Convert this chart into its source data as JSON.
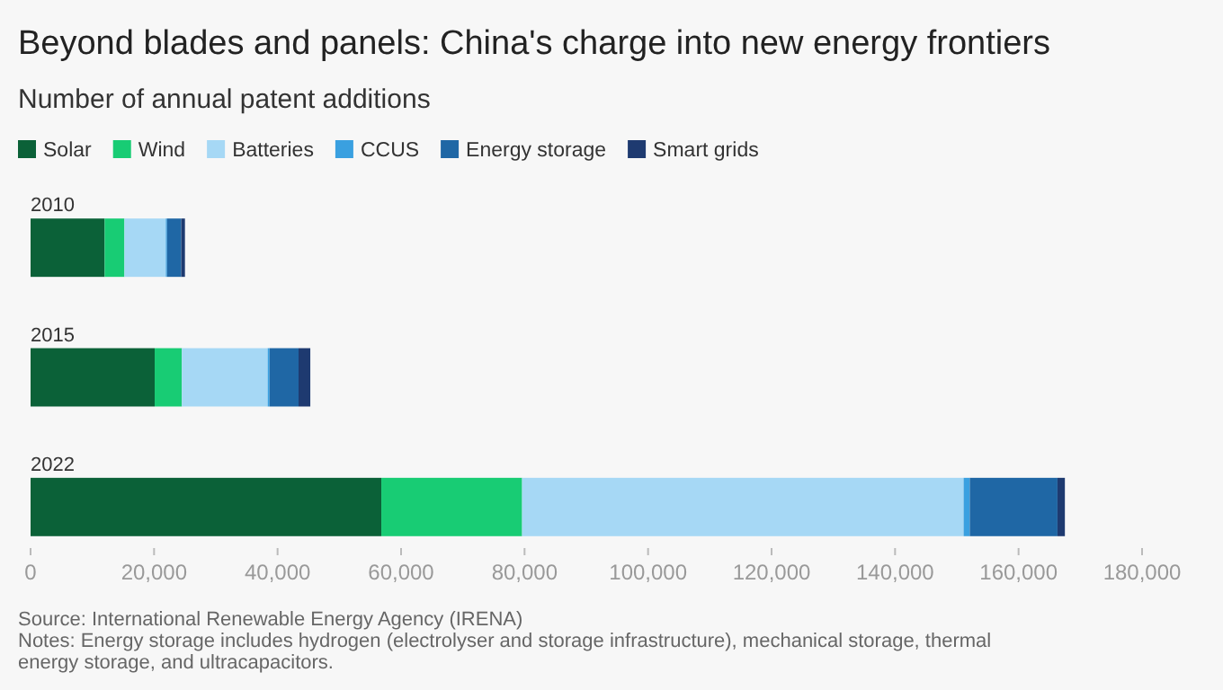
{
  "chart_data": {
    "type": "bar",
    "orientation": "horizontal",
    "stacked": true,
    "title": "Beyond blades and panels: China's charge into new energy frontiers",
    "subtitle": "Number of annual patent additions",
    "categories": [
      "2010",
      "2015",
      "2022"
    ],
    "series": [
      {
        "name": "Solar",
        "color": "#0b6138",
        "values": [
          12000,
          20100,
          56800
        ]
      },
      {
        "name": "Wind",
        "color": "#18cc74",
        "values": [
          3200,
          4400,
          22800
        ]
      },
      {
        "name": "Batteries",
        "color": "#a6d8f5",
        "values": [
          6700,
          13900,
          71500
        ]
      },
      {
        "name": "CCUS",
        "color": "#3aa0e0",
        "values": [
          200,
          300,
          1000
        ]
      },
      {
        "name": "Energy storage",
        "color": "#1f67a5",
        "values": [
          2300,
          4700,
          14200
        ]
      },
      {
        "name": "Smart grids",
        "color": "#1e3a70",
        "values": [
          600,
          1900,
          1200
        ]
      }
    ],
    "xlim": [
      0,
      180000
    ],
    "xticks": [
      {
        "value": 0,
        "label": "0"
      },
      {
        "value": 20000,
        "label": "20,000"
      },
      {
        "value": 40000,
        "label": "40,000"
      },
      {
        "value": 60000,
        "label": "60,000"
      },
      {
        "value": 80000,
        "label": "80,000"
      },
      {
        "value": 100000,
        "label": "100,000"
      },
      {
        "value": 120000,
        "label": "120,000"
      },
      {
        "value": 140000,
        "label": "140,000"
      },
      {
        "value": 160000,
        "label": "160,000"
      },
      {
        "value": 180000,
        "label": "180,000"
      }
    ],
    "legend": "top left",
    "grid": false,
    "annotations": [
      "Source: International Renewable Energy Agency (IRENA)",
      "Notes: Energy storage includes hydrogen (electrolyser and storage infrastructure), mechanical storage, thermal energy storage, and ultracapacitors."
    ]
  }
}
